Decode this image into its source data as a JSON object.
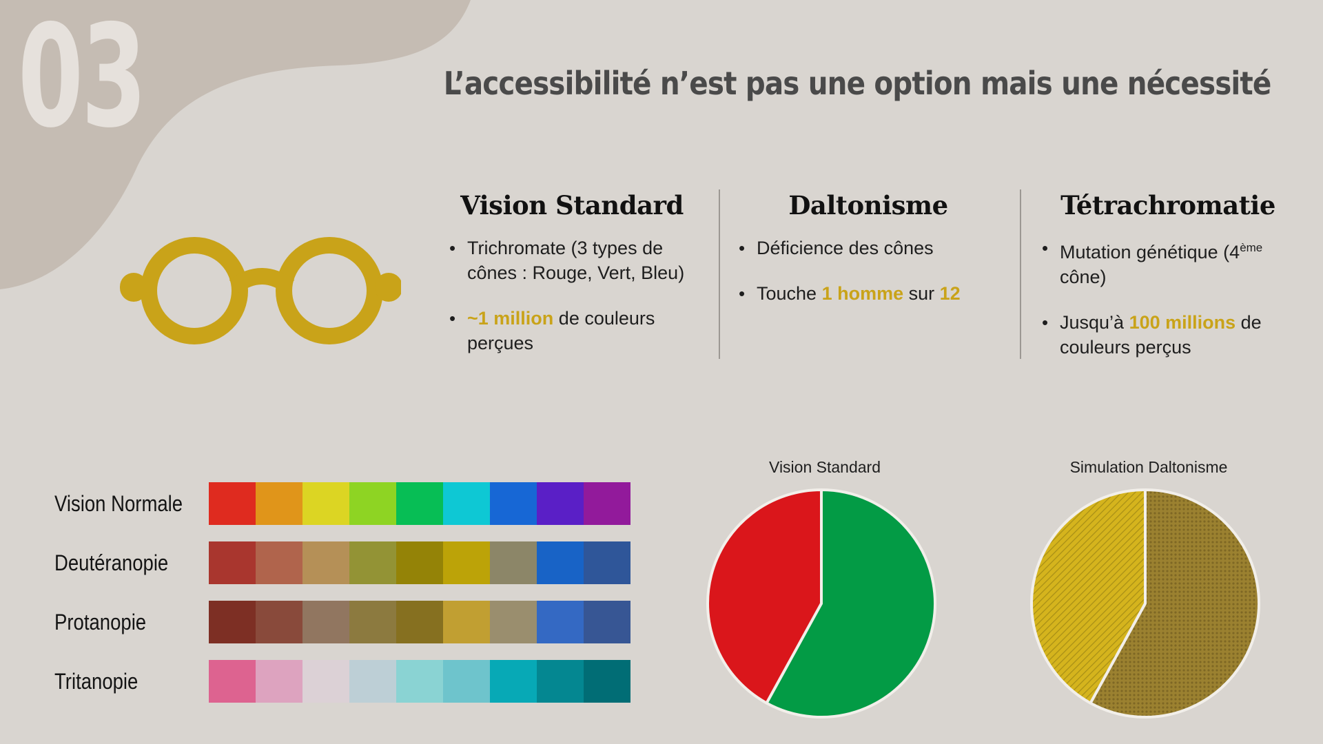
{
  "slide_number": "03",
  "title": "L’accessibilité n’est pas une option mais une nécessité",
  "icons": {
    "glasses": "glasses-icon"
  },
  "colors": {
    "accent": "#c9a319",
    "background": "#d9d5d0",
    "blob": "#c5bcb3"
  },
  "columns": [
    {
      "title": "Vision Standard",
      "bullets": [
        {
          "parts": [
            {
              "text": "Trichromate (3 types de cônes : Rouge, Vert, Bleu)"
            }
          ]
        },
        {
          "parts": [
            {
              "text": "~1 million",
              "highlight": true
            },
            {
              "text": " de couleurs perçues"
            }
          ]
        }
      ]
    },
    {
      "title": "Daltonisme",
      "bullets": [
        {
          "parts": [
            {
              "text": "Déficience des cônes"
            }
          ]
        },
        {
          "parts": [
            {
              "text": "Touche "
            },
            {
              "text": "1 homme",
              "highlight": true
            },
            {
              "text": " sur "
            },
            {
              "text": "12",
              "highlight": true
            }
          ]
        }
      ]
    },
    {
      "title": "Tétrachromatie",
      "bullets": [
        {
          "parts": [
            {
              "text": "Mutation génétique (4"
            },
            {
              "text": "ème",
              "sup": true
            },
            {
              "text": " cône)"
            }
          ]
        },
        {
          "parts": [
            {
              "text": "Jusqu’à "
            },
            {
              "text": "100 millions",
              "highlight": true
            },
            {
              "text": " de couleurs perçus"
            }
          ]
        }
      ]
    }
  ],
  "swatches": [
    {
      "label": "Vision Normale",
      "colors": [
        "#df2b1f",
        "#e0951a",
        "#dcd523",
        "#8ed423",
        "#07be55",
        "#0ec8d4",
        "#1767d5",
        "#5a1fc6",
        "#921a9b"
      ]
    },
    {
      "label": "Deutéranopie",
      "colors": [
        "#a9362e",
        "#b0644c",
        "#b59057",
        "#939335",
        "#948307",
        "#bca308",
        "#8c8668",
        "#1863c6",
        "#2f5699"
      ]
    },
    {
      "label": "Protanopie",
      "colors": [
        "#7d2f24",
        "#894a3b",
        "#917660",
        "#8c7a3f",
        "#867020",
        "#c19f32",
        "#9a8e6e",
        "#3469c3",
        "#375694"
      ]
    },
    {
      "label": "Tritanopie",
      "colors": [
        "#dd6390",
        "#dda3bf",
        "#dcd1d6",
        "#bdcfd6",
        "#8ad3d3",
        "#6ec4cc",
        "#07a9b6",
        "#048791",
        "#016d75"
      ]
    }
  ],
  "chart_data": [
    {
      "type": "pie",
      "title": "Vision Standard",
      "slices": [
        {
          "value": 58,
          "color": "#039b45"
        },
        {
          "value": 42,
          "color": "#da161b"
        }
      ]
    },
    {
      "type": "pie",
      "title": "Simulation Daltonisme",
      "slices": [
        {
          "value": 58,
          "color": "#9b8130"
        },
        {
          "value": 42,
          "color": "#d5b41d"
        }
      ]
    }
  ]
}
